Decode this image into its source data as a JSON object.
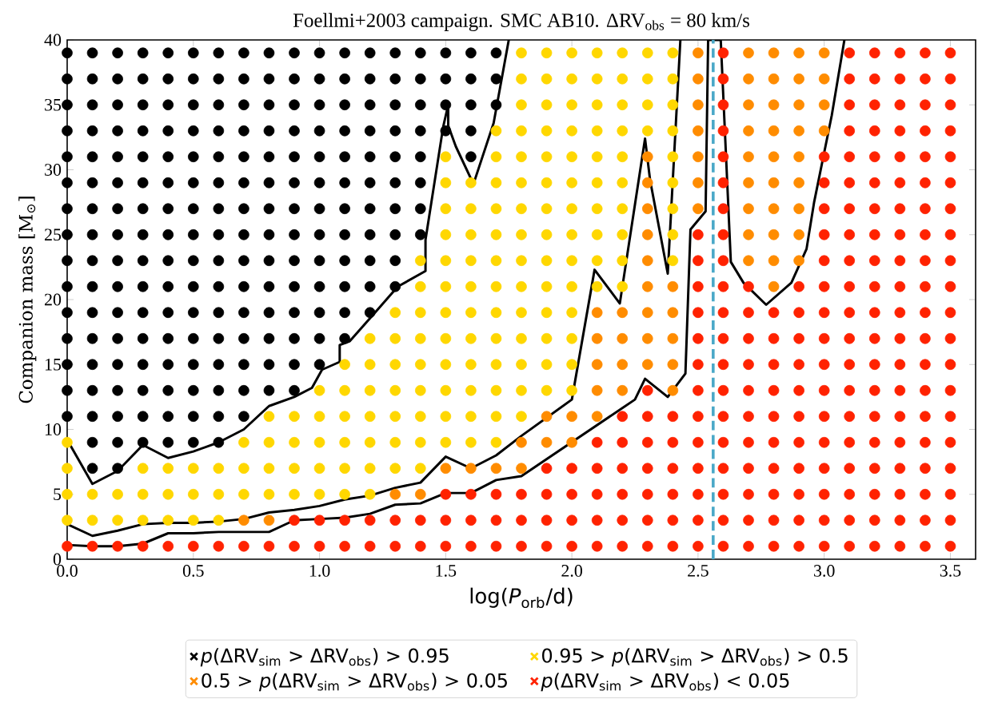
{
  "chart_data": {
    "type": "scatter",
    "title": "Foellmi+2003 campaign. SMC AB10. ΔRV$_{obs}$ = 80 km/s",
    "xlabel": "log(*P*$_{orb}$/d)",
    "ylabel": "Companion mass [M$_{⊙}$]",
    "xlim": [
      0,
      3.6
    ],
    "ylim": [
      0,
      40
    ],
    "xticks": [
      {
        "value": 0,
        "label": "0.0"
      },
      0.5,
      {
        "value": 1,
        "label": "1.0"
      },
      1.5,
      {
        "value": 2,
        "label": "2.0"
      },
      2.5,
      {
        "value": 3,
        "label": "3.0"
      },
      3.5
    ],
    "yticks": [
      0,
      5,
      10,
      15,
      20,
      25,
      30,
      35,
      40
    ],
    "marker": "circle",
    "legend": "bottom",
    "ref_lines": [
      {
        "axis": "x",
        "value": 2.56,
        "color": "#4aa8c8",
        "line_style": "dashed"
      }
    ],
    "series": [
      {
        "name": "*p*(ΔRV$_{sim}$ > ΔRV$_{obs}$) > 0.95",
        "color": "#000000",
        "x": [
          0,
          0,
          0,
          0,
          0,
          0,
          0,
          0,
          0,
          0,
          0,
          0,
          0,
          0,
          0,
          0.1,
          0.1,
          0.1,
          0.1,
          0.1,
          0.1,
          0.1,
          0.1,
          0.1,
          0.1,
          0.1,
          0.1,
          0.1,
          0.1,
          0.1,
          0.1,
          0.1,
          0.2,
          0.2,
          0.2,
          0.2,
          0.2,
          0.2,
          0.2,
          0.2,
          0.2,
          0.2,
          0.2,
          0.2,
          0.2,
          0.2,
          0.2,
          0.2,
          0.2,
          0.3,
          0.3,
          0.3,
          0.3,
          0.3,
          0.3,
          0.3,
          0.3,
          0.3,
          0.3,
          0.3,
          0.3,
          0.3,
          0.3,
          0.3,
          0.3,
          0.4,
          0.4,
          0.4,
          0.4,
          0.4,
          0.4,
          0.4,
          0.4,
          0.4,
          0.4,
          0.4,
          0.4,
          0.4,
          0.4,
          0.4,
          0.4,
          0.5,
          0.5,
          0.5,
          0.5,
          0.5,
          0.5,
          0.5,
          0.5,
          0.5,
          0.5,
          0.5,
          0.5,
          0.5,
          0.5,
          0.5,
          0.5,
          0.6,
          0.6,
          0.6,
          0.6,
          0.6,
          0.6,
          0.6,
          0.6,
          0.6,
          0.6,
          0.6,
          0.6,
          0.6,
          0.6,
          0.6,
          0.6,
          0.7,
          0.7,
          0.7,
          0.7,
          0.7,
          0.7,
          0.7,
          0.7,
          0.7,
          0.7,
          0.7,
          0.7,
          0.7,
          0.7,
          0.7,
          0.8,
          0.8,
          0.8,
          0.8,
          0.8,
          0.8,
          0.8,
          0.8,
          0.8,
          0.8,
          0.8,
          0.8,
          0.8,
          0.8,
          0.9,
          0.9,
          0.9,
          0.9,
          0.9,
          0.9,
          0.9,
          0.9,
          0.9,
          0.9,
          0.9,
          0.9,
          0.9,
          0.9,
          1,
          1,
          1,
          1,
          1,
          1,
          1,
          1,
          1,
          1,
          1,
          1,
          1,
          1.1,
          1.1,
          1.1,
          1.1,
          1.1,
          1.1,
          1.1,
          1.1,
          1.1,
          1.1,
          1.1,
          1.1,
          1.2,
          1.2,
          1.2,
          1.2,
          1.2,
          1.2,
          1.2,
          1.2,
          1.2,
          1.2,
          1.2,
          1.3,
          1.3,
          1.3,
          1.3,
          1.3,
          1.3,
          1.3,
          1.3,
          1.3,
          1.3,
          1.4,
          1.4,
          1.4,
          1.4,
          1.4,
          1.4,
          1.4,
          1.4,
          1.5,
          1.5,
          1.5,
          1.5,
          1.6,
          1.6,
          1.6,
          1.6,
          1.6,
          1.7,
          1.7,
          1.7
        ],
        "values": [
          11,
          13,
          15,
          17,
          19,
          21,
          23,
          25,
          27,
          29,
          31,
          33,
          35,
          37,
          39,
          7,
          9,
          11,
          13,
          15,
          17,
          19,
          21,
          23,
          25,
          27,
          29,
          31,
          33,
          35,
          37,
          39,
          7,
          9,
          11,
          13,
          15,
          17,
          19,
          21,
          23,
          25,
          27,
          29,
          31,
          33,
          35,
          37,
          39,
          9,
          11,
          13,
          15,
          17,
          19,
          21,
          23,
          25,
          27,
          29,
          31,
          33,
          35,
          37,
          39,
          9,
          11,
          13,
          15,
          17,
          19,
          21,
          23,
          25,
          27,
          29,
          31,
          33,
          35,
          37,
          39,
          9,
          11,
          13,
          15,
          17,
          19,
          21,
          23,
          25,
          27,
          29,
          31,
          33,
          35,
          37,
          39,
          9,
          11,
          13,
          15,
          17,
          19,
          21,
          23,
          25,
          27,
          29,
          31,
          33,
          35,
          37,
          39,
          11,
          13,
          15,
          17,
          19,
          21,
          23,
          25,
          27,
          29,
          31,
          33,
          35,
          37,
          39,
          13,
          15,
          17,
          19,
          21,
          23,
          25,
          27,
          29,
          31,
          33,
          35,
          37,
          39,
          13,
          15,
          17,
          19,
          21,
          23,
          25,
          27,
          29,
          31,
          33,
          35,
          37,
          39,
          15,
          17,
          19,
          21,
          23,
          25,
          27,
          29,
          31,
          33,
          35,
          37,
          39,
          17,
          19,
          21,
          23,
          25,
          27,
          29,
          31,
          33,
          35,
          37,
          39,
          19,
          21,
          23,
          25,
          27,
          29,
          31,
          33,
          35,
          37,
          39,
          21,
          23,
          25,
          27,
          29,
          31,
          33,
          35,
          37,
          39,
          25,
          27,
          29,
          31,
          33,
          35,
          37,
          39,
          33,
          35,
          37,
          39,
          31,
          33,
          35,
          37,
          39,
          35,
          37,
          39
        ]
      },
      {
        "name": "0.95 > *p*(ΔRV$_{sim}$ > ΔRV$_{obs}$) > 0.5",
        "color": "#ffd700",
        "x": [
          0,
          0,
          0,
          0,
          0.1,
          0.1,
          0.2,
          0.2,
          0.3,
          0.3,
          0.3,
          0.4,
          0.4,
          0.4,
          0.5,
          0.5,
          0.5,
          0.6,
          0.6,
          0.6,
          0.7,
          0.7,
          0.7,
          0.8,
          0.8,
          0.8,
          0.8,
          0.9,
          0.9,
          0.9,
          0.9,
          1,
          1,
          1,
          1,
          1,
          1.1,
          1.1,
          1.1,
          1.1,
          1.1,
          1.1,
          1.2,
          1.2,
          1.2,
          1.2,
          1.2,
          1.2,
          1.2,
          1.3,
          1.3,
          1.3,
          1.3,
          1.3,
          1.3,
          1.3,
          1.4,
          1.4,
          1.4,
          1.4,
          1.4,
          1.4,
          1.4,
          1.4,
          1.4,
          1.5,
          1.5,
          1.5,
          1.5,
          1.5,
          1.5,
          1.5,
          1.5,
          1.5,
          1.5,
          1.5,
          1.5,
          1.6,
          1.6,
          1.6,
          1.6,
          1.6,
          1.6,
          1.6,
          1.6,
          1.6,
          1.6,
          1.6,
          1.7,
          1.7,
          1.7,
          1.7,
          1.7,
          1.7,
          1.7,
          1.7,
          1.7,
          1.7,
          1.7,
          1.7,
          1.7,
          1.8,
          1.8,
          1.8,
          1.8,
          1.8,
          1.8,
          1.8,
          1.8,
          1.8,
          1.8,
          1.8,
          1.8,
          1.8,
          1.8,
          1.8,
          1.9,
          1.9,
          1.9,
          1.9,
          1.9,
          1.9,
          1.9,
          1.9,
          1.9,
          1.9,
          1.9,
          1.9,
          1.9,
          1.9,
          2,
          2,
          2,
          2,
          2,
          2,
          2,
          2,
          2,
          2,
          2,
          2,
          2,
          2,
          2.1,
          2.1,
          2.1,
          2.1,
          2.1,
          2.1,
          2.1,
          2.1,
          2.1,
          2.1,
          2.2,
          2.2,
          2.2,
          2.2,
          2.2,
          2.2,
          2.2,
          2.2,
          2.2,
          2.2,
          2.3,
          2.3,
          2.3,
          2.3,
          2.4,
          2.4,
          2.4,
          2.4,
          2.4,
          2.4,
          2.4,
          2.4,
          2.4
        ],
        "values": [
          3,
          5,
          7,
          9,
          3,
          5,
          3,
          5,
          3,
          5,
          7,
          3,
          5,
          7,
          3,
          5,
          7,
          3,
          5,
          7,
          5,
          7,
          9,
          5,
          7,
          9,
          11,
          5,
          7,
          9,
          11,
          5,
          7,
          9,
          11,
          13,
          5,
          7,
          9,
          11,
          13,
          15,
          5,
          7,
          9,
          11,
          13,
          15,
          17,
          7,
          9,
          11,
          13,
          15,
          17,
          19,
          7,
          9,
          11,
          13,
          15,
          17,
          19,
          21,
          23,
          9,
          11,
          13,
          15,
          17,
          19,
          21,
          23,
          25,
          27,
          29,
          31,
          9,
          11,
          13,
          15,
          17,
          19,
          21,
          23,
          25,
          27,
          29,
          9,
          11,
          13,
          15,
          17,
          19,
          21,
          23,
          25,
          27,
          29,
          31,
          33,
          11,
          13,
          15,
          17,
          19,
          21,
          23,
          25,
          27,
          29,
          31,
          33,
          35,
          37,
          39,
          13,
          15,
          17,
          19,
          21,
          23,
          25,
          27,
          29,
          31,
          33,
          35,
          37,
          39,
          13,
          15,
          17,
          19,
          21,
          23,
          25,
          27,
          29,
          31,
          33,
          35,
          37,
          39,
          21,
          23,
          25,
          27,
          29,
          31,
          33,
          35,
          37,
          39,
          21,
          23,
          25,
          27,
          29,
          31,
          33,
          35,
          37,
          39,
          33,
          35,
          37,
          39,
          23,
          25,
          27,
          29,
          31,
          33,
          35,
          37,
          39
        ]
      },
      {
        "name": "0.5 > *p*(ΔRV$_{sim}$ > ΔRV$_{obs}$) > 0.05",
        "color": "#ff8c00",
        "x": [
          0.7,
          0.8,
          1.3,
          1.4,
          1.5,
          1.6,
          1.7,
          1.8,
          1.8,
          1.9,
          1.9,
          2,
          2,
          2.1,
          2.1,
          2.1,
          2.1,
          2.1,
          2.2,
          2.2,
          2.2,
          2.2,
          2.3,
          2.3,
          2.3,
          2.3,
          2.3,
          2.3,
          2.3,
          2.3,
          2.3,
          2.4,
          2.4,
          2.4,
          2.4,
          2.4,
          2.5,
          2.5,
          2.5,
          2.5,
          2.5,
          2.5,
          2.5,
          2.7,
          2.7,
          2.7,
          2.7,
          2.7,
          2.7,
          2.7,
          2.7,
          2.7,
          2.8,
          2.8,
          2.8,
          2.8,
          2.8,
          2.8,
          2.8,
          2.8,
          2.8,
          2.8,
          2.9,
          2.9,
          2.9,
          2.9,
          2.9,
          2.9,
          2.9,
          2.9,
          2.9,
          3,
          3,
          3,
          3
        ],
        "values": [
          3,
          3,
          5,
          5,
          7,
          7,
          7,
          7,
          9,
          9,
          11,
          9,
          11,
          11,
          13,
          15,
          17,
          19,
          13,
          15,
          17,
          19,
          15,
          17,
          19,
          21,
          23,
          25,
          27,
          29,
          31,
          13,
          15,
          17,
          19,
          21,
          27,
          29,
          31,
          33,
          35,
          37,
          39,
          23,
          25,
          27,
          29,
          31,
          33,
          35,
          37,
          39,
          21,
          23,
          25,
          27,
          29,
          31,
          33,
          35,
          37,
          39,
          23,
          25,
          27,
          29,
          31,
          33,
          35,
          37,
          39,
          33,
          35,
          37,
          39
        ]
      },
      {
        "name": "*p*(ΔRV$_{sim}$ > ΔRV$_{obs}$) < 0.05",
        "color": "#ff2200",
        "x": [
          0,
          0.1,
          0.2,
          0.3,
          0.4,
          0.5,
          0.6,
          0.7,
          0.8,
          0.9,
          0.9,
          1,
          1,
          1.1,
          1.1,
          1.2,
          1.2,
          1.3,
          1.3,
          1.4,
          1.4,
          1.5,
          1.5,
          1.5,
          1.6,
          1.6,
          1.6,
          1.7,
          1.7,
          1.7,
          1.8,
          1.8,
          1.8,
          1.9,
          1.9,
          1.9,
          1.9,
          2,
          2,
          2,
          2,
          2.1,
          2.1,
          2.1,
          2.1,
          2.1,
          2.2,
          2.2,
          2.2,
          2.2,
          2.2,
          2.2,
          2.3,
          2.3,
          2.3,
          2.3,
          2.3,
          2.3,
          2.3,
          2.4,
          2.4,
          2.4,
          2.4,
          2.4,
          2.4,
          2.5,
          2.5,
          2.5,
          2.5,
          2.5,
          2.5,
          2.5,
          2.5,
          2.5,
          2.5,
          2.5,
          2.5,
          2.5,
          2.6,
          2.6,
          2.6,
          2.6,
          2.6,
          2.6,
          2.6,
          2.6,
          2.6,
          2.6,
          2.6,
          2.6,
          2.6,
          2.6,
          2.6,
          2.6,
          2.6,
          2.6,
          2.6,
          2.6,
          2.7,
          2.7,
          2.7,
          2.7,
          2.7,
          2.7,
          2.7,
          2.7,
          2.7,
          2.7,
          2.7,
          2.8,
          2.8,
          2.8,
          2.8,
          2.8,
          2.8,
          2.8,
          2.8,
          2.8,
          2.8,
          2.9,
          2.9,
          2.9,
          2.9,
          2.9,
          2.9,
          2.9,
          2.9,
          2.9,
          2.9,
          2.9,
          3,
          3,
          3,
          3,
          3,
          3,
          3,
          3,
          3,
          3,
          3,
          3,
          3,
          3,
          3,
          3,
          3.1,
          3.1,
          3.1,
          3.1,
          3.1,
          3.1,
          3.1,
          3.1,
          3.1,
          3.1,
          3.1,
          3.1,
          3.1,
          3.1,
          3.1,
          3.1,
          3.1,
          3.1,
          3.1,
          3.1,
          3.2,
          3.2,
          3.2,
          3.2,
          3.2,
          3.2,
          3.2,
          3.2,
          3.2,
          3.2,
          3.2,
          3.2,
          3.2,
          3.2,
          3.2,
          3.2,
          3.2,
          3.2,
          3.2,
          3.2,
          3.3,
          3.3,
          3.3,
          3.3,
          3.3,
          3.3,
          3.3,
          3.3,
          3.3,
          3.3,
          3.3,
          3.3,
          3.3,
          3.3,
          3.3,
          3.3,
          3.3,
          3.3,
          3.3,
          3.3,
          3.4,
          3.4,
          3.4,
          3.4,
          3.4,
          3.4,
          3.4,
          3.4,
          3.4,
          3.4,
          3.4,
          3.4,
          3.4,
          3.4,
          3.4,
          3.4,
          3.4,
          3.4,
          3.4,
          3.4,
          3.5,
          3.5,
          3.5,
          3.5,
          3.5,
          3.5,
          3.5,
          3.5,
          3.5,
          3.5,
          3.5,
          3.5,
          3.5,
          3.5,
          3.5,
          3.5,
          3.5,
          3.5,
          3.5,
          3.5
        ],
        "values": [
          1,
          1,
          1,
          1,
          1,
          1,
          1,
          1,
          1,
          1,
          3,
          1,
          3,
          1,
          3,
          1,
          3,
          1,
          3,
          1,
          3,
          1,
          3,
          5,
          1,
          3,
          5,
          1,
          3,
          5,
          1,
          3,
          5,
          1,
          3,
          5,
          7,
          1,
          3,
          5,
          7,
          1,
          3,
          5,
          7,
          9,
          1,
          3,
          5,
          7,
          9,
          11,
          1,
          3,
          5,
          7,
          9,
          11,
          13,
          1,
          3,
          5,
          7,
          9,
          11,
          1,
          3,
          5,
          7,
          9,
          11,
          13,
          15,
          17,
          19,
          21,
          23,
          25,
          1,
          3,
          5,
          7,
          9,
          11,
          13,
          15,
          17,
          19,
          21,
          23,
          25,
          27,
          29,
          31,
          33,
          35,
          37,
          39,
          1,
          3,
          5,
          7,
          9,
          11,
          13,
          15,
          17,
          19,
          21,
          1,
          3,
          5,
          7,
          9,
          11,
          13,
          15,
          17,
          19,
          1,
          3,
          5,
          7,
          9,
          11,
          13,
          15,
          17,
          19,
          21,
          1,
          3,
          5,
          7,
          9,
          11,
          13,
          15,
          17,
          19,
          21,
          23,
          25,
          27,
          29,
          31,
          1,
          3,
          5,
          7,
          9,
          11,
          13,
          15,
          17,
          19,
          21,
          23,
          25,
          27,
          29,
          31,
          33,
          35,
          37,
          39,
          1,
          3,
          5,
          7,
          9,
          11,
          13,
          15,
          17,
          19,
          21,
          23,
          25,
          27,
          29,
          31,
          33,
          35,
          37,
          39,
          1,
          3,
          5,
          7,
          9,
          11,
          13,
          15,
          17,
          19,
          21,
          23,
          25,
          27,
          29,
          31,
          33,
          35,
          37,
          39,
          1,
          3,
          5,
          7,
          9,
          11,
          13,
          15,
          17,
          19,
          21,
          23,
          25,
          27,
          29,
          31,
          33,
          35,
          37,
          39,
          1,
          3,
          5,
          7,
          9,
          11,
          13,
          15,
          17,
          19,
          21,
          23,
          25,
          27,
          29,
          31,
          33,
          35,
          37,
          39
        ]
      },
      {
        "type": "line",
        "marker": "none",
        "color": "#000000",
        "x": [
          0,
          0.1,
          0.2,
          0.3,
          0.4,
          0.5,
          0.6,
          0.7,
          0.8,
          0.9,
          0.97,
          1.01,
          1.08,
          1.08,
          1.12,
          1.22,
          1.31,
          1.42,
          1.42,
          1.49,
          1.51,
          1.51,
          1.54,
          1.61,
          1.69,
          1.75
        ],
        "values": [
          9.2,
          5.8,
          6.8,
          8.8,
          7.8,
          8.3,
          9,
          10,
          11.8,
          12.5,
          13.2,
          14.6,
          15.2,
          16.5,
          16.8,
          19,
          21,
          22.2,
          24.6,
          33.3,
          35,
          33.4,
          31.8,
          28.9,
          33.6,
          40
        ]
      },
      {
        "type": "line",
        "marker": "none",
        "color": "#000000",
        "x": [
          0,
          0.1,
          0.2,
          0.3,
          0.4,
          0.5,
          0.6,
          0.7,
          0.8,
          0.9,
          1.0,
          1.1,
          1.2,
          1.3,
          1.4,
          1.5,
          1.6,
          1.7,
          1.8,
          2.0,
          2.09,
          2.19,
          2.29,
          2.31,
          2.38,
          2.43
        ],
        "values": [
          2.7,
          1.8,
          2.2,
          2.7,
          2.8,
          2.8,
          2.9,
          3.1,
          3.6,
          3.8,
          4.1,
          4.6,
          4.9,
          5.5,
          5.9,
          7.9,
          7,
          8,
          9.5,
          12.3,
          22.3,
          19.7,
          32.4,
          29.2,
          22,
          40
        ]
      },
      {
        "type": "line",
        "marker": "none",
        "color": "#000000",
        "x": [
          0,
          0.1,
          0.2,
          0.3,
          0.4,
          0.5,
          0.6,
          0.7,
          0.8,
          0.9,
          1.0,
          1.1,
          1.2,
          1.3,
          1.4,
          1.5,
          1.6,
          1.7,
          1.8,
          2.25,
          2.29,
          2.38,
          2.45,
          2.47,
          2.53,
          2.54,
          2.59,
          2.63,
          2.68,
          2.77,
          2.87,
          2.93,
          2.96,
          3.03,
          3.08
        ],
        "values": [
          1.1,
          1.0,
          1.0,
          1.2,
          2.0,
          2.0,
          2.1,
          2.1,
          2.1,
          3.0,
          3.1,
          3.2,
          3.5,
          4.2,
          4.3,
          5.1,
          5.1,
          6.1,
          6.4,
          12.3,
          13.9,
          12.5,
          14.3,
          25.4,
          26.8,
          40,
          40,
          22.9,
          21.3,
          19.6,
          21.3,
          23.9,
          27.5,
          34.2,
          40
        ]
      }
    ]
  }
}
